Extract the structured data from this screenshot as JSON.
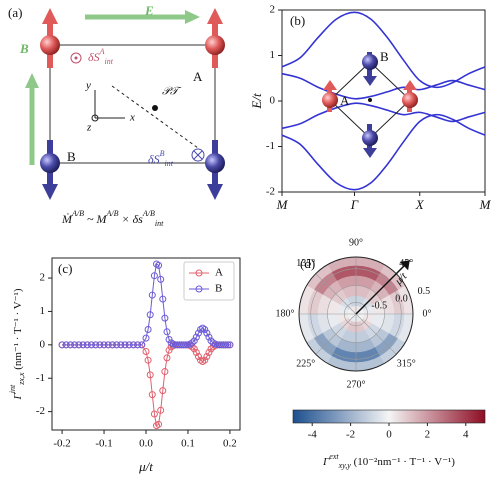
{
  "panel_a": {
    "label": "(a)",
    "e_field": "E",
    "b_field": "B",
    "site_a": "A",
    "site_b": "B",
    "axis_x": "x",
    "axis_y": "y",
    "axis_z": "z",
    "symmetry": "𝒫𝒯",
    "spin_a": [
      "δS",
      "A",
      "int"
    ],
    "spin_b": [
      "δS",
      "B",
      "int"
    ],
    "formula": [
      "Ṁ",
      "A/B",
      " ~ M",
      "A/B",
      " × δs",
      "A/B",
      "int"
    ]
  },
  "chart_data": [
    {
      "type": "line",
      "label": "(b)",
      "ylabel": "E/t",
      "inset_labels": [
        "B",
        "A"
      ],
      "x": [
        0,
        0.25,
        0.5,
        0.75,
        1,
        1.225,
        1.45,
        1.675,
        1.9,
        2.125,
        2.35,
        2.575,
        2.8
      ],
      "xlim": [
        0,
        2.8
      ],
      "xticks": [
        {
          "value": 0,
          "label": "M"
        },
        {
          "value": 1,
          "label": "Γ"
        },
        {
          "value": 1.9,
          "label": "X"
        },
        {
          "value": 2.8,
          "label": "M"
        }
      ],
      "ylim": [
        -2,
        2
      ],
      "yticks": [
        -2,
        -1,
        0,
        1,
        2
      ],
      "series": [
        {
          "color": "#3434d4",
          "values": [
            0.75,
            0.95,
            1.4,
            1.8,
            1.95,
            1.8,
            1.4,
            0.9,
            0.45,
            0.3,
            0.4,
            0.6,
            0.75
          ]
        },
        {
          "color": "#3434d4",
          "values": [
            0.6,
            0.5,
            0.3,
            0.15,
            0.05,
            0.1,
            0.2,
            0.3,
            0.25,
            0.35,
            0.45,
            0.35,
            0.25
          ]
        },
        {
          "color": "#3434d4",
          "values": [
            -0.6,
            -0.5,
            -0.3,
            -0.15,
            -0.05,
            -0.1,
            -0.2,
            -0.3,
            -0.25,
            -0.35,
            -0.45,
            -0.35,
            -0.25
          ]
        },
        {
          "color": "#3434d4",
          "values": [
            -0.75,
            -0.95,
            -1.4,
            -1.8,
            -1.95,
            -1.8,
            -1.4,
            -0.9,
            -0.45,
            -0.3,
            -0.4,
            -0.6,
            -0.75
          ]
        }
      ]
    },
    {
      "type": "line",
      "marker": "circle",
      "label": "(c)",
      "xlabel": "μ/t",
      "ylabel": [
        "Γ",
        "int",
        "zx,x",
        " (nm⁻¹ · T⁻¹ · V⁻¹)"
      ],
      "legend": "upper right",
      "x": [
        -0.2,
        -0.19,
        -0.18,
        -0.17,
        -0.16,
        -0.15,
        -0.14,
        -0.13,
        -0.12,
        -0.11,
        -0.1,
        -0.09,
        -0.08,
        -0.07,
        -0.06,
        -0.05,
        -0.04,
        -0.03,
        -0.02,
        -0.01,
        0,
        0.005,
        0.01,
        0.015,
        0.02,
        0.025,
        0.03,
        0.035,
        0.04,
        0.045,
        0.05,
        0.055,
        0.06,
        0.065,
        0.07,
        0.075,
        0.08,
        0.085,
        0.09,
        0.095,
        0.1,
        0.105,
        0.11,
        0.115,
        0.12,
        0.125,
        0.13,
        0.135,
        0.14,
        0.145,
        0.15,
        0.155,
        0.16,
        0.165,
        0.17,
        0.175,
        0.18,
        0.185,
        0.19,
        0.195,
        0.2
      ],
      "xlim": [
        -0.224,
        0.224
      ],
      "xticks": [
        -0.2,
        -0.1,
        {
          "value": 0,
          "label": "0.0"
        },
        0.1,
        0.2
      ],
      "ylim": [
        -2.55,
        2.6
      ],
      "yticks": [
        -2,
        -1,
        0,
        1,
        2
      ],
      "series": [
        {
          "name": "A",
          "color": "#e0606e",
          "values": [
            0,
            0,
            0,
            0,
            0,
            0,
            0,
            0,
            0,
            0,
            0,
            0,
            0,
            0,
            0,
            0,
            0,
            0,
            0,
            0,
            -0.2,
            -0.46,
            -0.9,
            -1.49,
            -2.07,
            -2.42,
            -2.38,
            -1.96,
            -1.37,
            -0.8,
            -0.39,
            -0.16,
            -0.06,
            -0.02,
            0,
            0,
            0,
            0,
            0,
            0,
            0,
            -0.02,
            -0.06,
            -0.12,
            -0.23,
            -0.35,
            -0.46,
            -0.5,
            -0.46,
            -0.35,
            -0.23,
            -0.12,
            -0.06,
            -0.02,
            0,
            0,
            0,
            0,
            0,
            0,
            0
          ]
        },
        {
          "name": "B",
          "color": "#6b5bd6",
          "values": [
            0,
            0,
            0,
            0,
            0,
            0,
            0,
            0,
            0,
            0,
            0,
            0,
            0,
            0,
            0,
            0,
            0,
            0,
            0,
            0,
            0.2,
            0.46,
            0.9,
            1.49,
            2.07,
            2.42,
            2.38,
            1.96,
            1.37,
            0.8,
            0.39,
            0.16,
            0.06,
            0.02,
            0,
            0,
            0,
            0,
            0,
            0,
            0,
            0.02,
            0.06,
            0.12,
            0.23,
            0.35,
            0.46,
            0.5,
            0.46,
            0.35,
            0.23,
            0.12,
            0.06,
            0.02,
            0,
            0,
            0,
            0,
            0,
            0,
            0
          ]
        }
      ]
    },
    {
      "type": "polar_heatmap",
      "label": "(d)",
      "rlabel": "μ/t",
      "r_edges": [
        -0.85,
        -0.6,
        -0.3,
        0,
        0.3,
        0.6,
        0.85
      ],
      "theta_edges": [
        0,
        30,
        60,
        90,
        120,
        150,
        180,
        210,
        240,
        270,
        300,
        330,
        360
      ],
      "values": [
        [
          0.1,
          0.2,
          0.3,
          0.3,
          0.2,
          0.1,
          -0.1,
          -0.2,
          -0.3,
          -0.3,
          -0.2,
          -0.1
        ],
        [
          -0.3,
          -0.7,
          -1.0,
          -1.0,
          -0.7,
          -0.3,
          0.3,
          0.7,
          1.0,
          1.0,
          0.7,
          0.3
        ],
        [
          0.3,
          0.9,
          1.2,
          1.2,
          0.9,
          0.3,
          -0.3,
          -0.9,
          -1.2,
          -1.2,
          -0.9,
          -0.3
        ],
        [
          0.5,
          1.4,
          1.9,
          1.9,
          1.4,
          0.5,
          -0.5,
          -1.4,
          -1.9,
          -1.9,
          -1.4,
          -0.5
        ],
        [
          0.9,
          2.5,
          3.4,
          3.4,
          2.5,
          0.9,
          -0.9,
          -2.5,
          -3.4,
          -3.4,
          -2.5,
          -0.9
        ],
        [
          0.4,
          1.1,
          1.5,
          1.5,
          1.1,
          0.4,
          -0.4,
          -1.1,
          -1.5,
          -1.5,
          -1.1,
          -0.4
        ]
      ],
      "rlim": [
        -0.85,
        0.85
      ],
      "rticks": [
        -0.5,
        {
          "value": 0,
          "label": "0.0"
        },
        0.5
      ],
      "thetaticks": [
        {
          "value": 0,
          "label": "0°"
        },
        {
          "value": 45,
          "label": "45°"
        },
        {
          "value": 90,
          "label": "90°"
        },
        {
          "value": 135,
          "label": "135°"
        },
        {
          "value": 180,
          "label": "180°"
        },
        {
          "value": 225,
          "label": "225°"
        },
        {
          "value": 270,
          "label": "270°"
        },
        {
          "value": 315,
          "label": "315°"
        }
      ],
      "clim": [
        -5,
        5
      ],
      "cticks": [
        -4,
        -2,
        0,
        2,
        4
      ],
      "colormap": [
        "#1d4f8f",
        "#f5f5f5",
        "#8e0d24"
      ],
      "colorbar_label": [
        "Γ",
        "ext",
        "xy,y",
        " (10⁻²nm⁻¹ · T⁻¹ · V⁻¹)"
      ]
    }
  ]
}
